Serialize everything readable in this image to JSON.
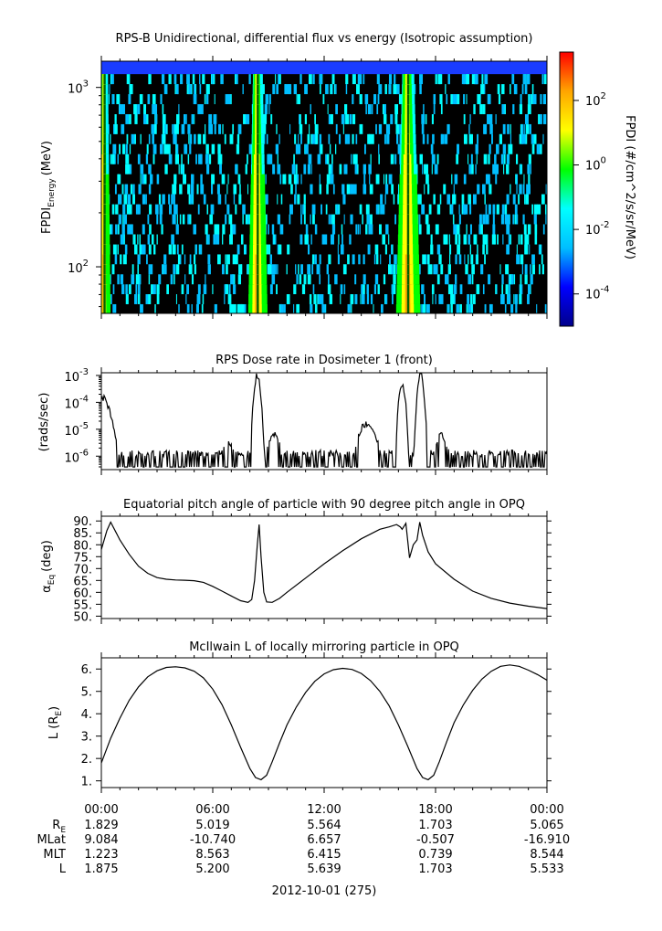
{
  "chart_data": [
    {
      "type": "heatmap",
      "title": "RPS-B  Unidirectional, differential flux vs energy (Isotropic assumption)",
      "ylabel": "FPDI",
      "ylabel_sub": "Energy",
      "ylabel_unit": "(MeV)",
      "yscale": "log",
      "ylim": [
        55,
        1400
      ],
      "yticks": [
        {
          "value": 100,
          "base": "10",
          "exp": "2"
        },
        {
          "value": 1000,
          "base": "10",
          "exp": "3"
        }
      ],
      "energy_bins_mev": [
        58,
        66,
        75,
        85,
        97,
        110,
        125,
        142,
        162,
        184,
        209,
        238,
        271,
        308,
        350,
        398,
        453,
        515,
        585,
        665,
        756,
        860,
        978,
        1112,
        1265
      ],
      "bright_bands_hours": [
        [
          0.0,
          0.35
        ],
        [
          8.1,
          8.75
        ],
        [
          16.1,
          16.95
        ]
      ],
      "colorbar": {
        "label": "FPDI (#/cm^2/s/sr/MeV)",
        "scale": "log",
        "range_exp": [
          -5,
          3.5
        ],
        "ticks": [
          {
            "exp": -4,
            "label_base": "10",
            "label_exp": "-4"
          },
          {
            "exp": -2,
            "label_base": "10",
            "label_exp": "-2"
          },
          {
            "exp": 0,
            "label_base": "10",
            "label_exp": "0"
          },
          {
            "exp": 2,
            "label_base": "10",
            "label_exp": "2"
          }
        ],
        "colors": [
          "#00008b",
          "#0000ff",
          "#00bfff",
          "#00ffff",
          "#00ff00",
          "#ffff00",
          "#ffa500",
          "#ff0000"
        ]
      }
    },
    {
      "type": "line",
      "title": "RPS  Dose rate in Dosimeter 1 (front)",
      "ylabel": "(rads/sec)",
      "yscale": "log",
      "ylim_exp": [
        -6.5,
        -2.9
      ],
      "yticks": [
        {
          "exp": -6,
          "base": "10",
          "sup": "-6"
        },
        {
          "exp": -5,
          "base": "10",
          "sup": "-5"
        },
        {
          "exp": -4,
          "base": "10",
          "sup": "-4"
        },
        {
          "exp": -3,
          "base": "10",
          "sup": "-3"
        }
      ],
      "floor_exp": -6.4,
      "base_exp": -5.9,
      "peaks": [
        {
          "hour": 0.0,
          "exp": -3.8,
          "width": 1.0
        },
        {
          "hour": 8.4,
          "exp": -3.0,
          "width": 0.35
        },
        {
          "hour": 16.2,
          "exp": -3.3,
          "width": 0.35
        },
        {
          "hour": 17.2,
          "exp": -3.0,
          "width": 0.35
        }
      ],
      "bumps": [
        {
          "hour": 6.8,
          "exp": -5.5,
          "width": 0.5
        },
        {
          "hour": 9.3,
          "exp": -5.2,
          "width": 0.5
        },
        {
          "hour": 14.3,
          "exp": -4.8,
          "width": 0.7
        },
        {
          "hour": 18.3,
          "exp": -5.2,
          "width": 0.5
        }
      ]
    },
    {
      "type": "line",
      "title": "Equatorial pitch angle of particle with 90 degree pitch angle in OPQ",
      "ylabel": "α",
      "ylabel_sub": "Eq",
      "ylabel_unit": "(deg)",
      "ylim": [
        49,
        92
      ],
      "yticks": [
        50,
        55,
        60,
        65,
        70,
        75,
        80,
        85,
        90
      ],
      "ytick_labels": [
        "50.",
        "55.",
        "60.",
        "65.",
        "70.",
        "75.",
        "80.",
        "85.",
        "90."
      ],
      "x": [
        0,
        0.3,
        0.5,
        0.8,
        1.0,
        1.5,
        2.0,
        2.5,
        3.0,
        3.5,
        4.0,
        4.5,
        5.0,
        5.5,
        6.0,
        6.5,
        7.0,
        7.5,
        7.9,
        8.1,
        8.25,
        8.4,
        8.5,
        8.6,
        8.75,
        8.9,
        9.2,
        9.6,
        10.0,
        11.0,
        12.0,
        13.0,
        14.0,
        15.0,
        15.5,
        15.9,
        16.1,
        16.2,
        16.4,
        16.6,
        16.8,
        17.0,
        17.15,
        17.3,
        17.6,
        18.0,
        19.0,
        20.0,
        21.0,
        22.0,
        23.0,
        24.0
      ],
      "y": [
        78,
        86,
        89.5,
        85,
        82,
        76,
        71,
        68,
        66.2,
        65.5,
        65.2,
        65.1,
        64.9,
        64.2,
        62.5,
        60.5,
        58.5,
        56.5,
        55.8,
        57,
        65,
        80,
        88.5,
        75,
        60,
        56,
        55.8,
        57.5,
        60,
        66,
        72,
        77.5,
        82.5,
        86.5,
        87.5,
        88.5,
        87.5,
        86.5,
        89,
        74.5,
        80,
        82,
        89.5,
        84,
        77,
        72,
        65.5,
        60.5,
        57.5,
        55.5,
        54.2,
        53.2
      ]
    },
    {
      "type": "line",
      "title": "McIlwain L of locally mirroring particle in OPQ",
      "ylabel": "L (R",
      "ylabel_sub": "E",
      "ylabel_close": ")",
      "ylim": [
        0.7,
        6.5
      ],
      "yticks": [
        1,
        2,
        3,
        4,
        5,
        6
      ],
      "ytick_labels": [
        "1.",
        "2.",
        "3.",
        "4.",
        "5.",
        "6."
      ],
      "x": [
        0,
        0.5,
        1,
        1.5,
        2,
        2.5,
        3,
        3.5,
        4,
        4.5,
        5,
        5.5,
        6,
        6.5,
        7,
        7.5,
        8,
        8.3,
        8.6,
        8.9,
        9.2,
        9.6,
        10,
        10.5,
        11,
        11.5,
        12,
        12.5,
        13,
        13.5,
        14,
        14.5,
        15,
        15.5,
        16,
        16.5,
        17,
        17.3,
        17.6,
        17.9,
        18.2,
        18.6,
        19,
        19.5,
        20,
        20.5,
        21,
        21.5,
        22,
        22.5,
        23,
        23.5,
        24
      ],
      "y": [
        1.8,
        2.9,
        3.8,
        4.6,
        5.2,
        5.65,
        5.92,
        6.07,
        6.1,
        6.05,
        5.9,
        5.6,
        5.1,
        4.4,
        3.5,
        2.5,
        1.55,
        1.15,
        1.05,
        1.25,
        1.85,
        2.7,
        3.5,
        4.3,
        4.95,
        5.45,
        5.78,
        5.97,
        6.03,
        5.98,
        5.8,
        5.48,
        5.0,
        4.35,
        3.5,
        2.55,
        1.55,
        1.15,
        1.05,
        1.25,
        1.85,
        2.75,
        3.6,
        4.4,
        5.05,
        5.55,
        5.9,
        6.12,
        6.18,
        6.12,
        5.95,
        5.75,
        5.5
      ]
    }
  ],
  "x_axis": {
    "ticks": [
      "00:00",
      "06:00",
      "12:00",
      "18:00",
      "00:00"
    ],
    "rows": [
      {
        "label": "R",
        "label_sub": "E",
        "values": [
          "1.829",
          "5.019",
          "5.564",
          "1.703",
          "5.065"
        ]
      },
      {
        "label": "MLat",
        "values": [
          "9.084",
          "-10.740",
          "6.657",
          "-0.507",
          "-16.910"
        ]
      },
      {
        "label": "MLT",
        "values": [
          "1.223",
          "8.563",
          "6.415",
          "0.739",
          "8.544"
        ]
      },
      {
        "label": "L",
        "values": [
          "1.875",
          "5.200",
          "5.639",
          "1.703",
          "5.533"
        ]
      }
    ],
    "date_label": "2012-10-01 (275)"
  }
}
